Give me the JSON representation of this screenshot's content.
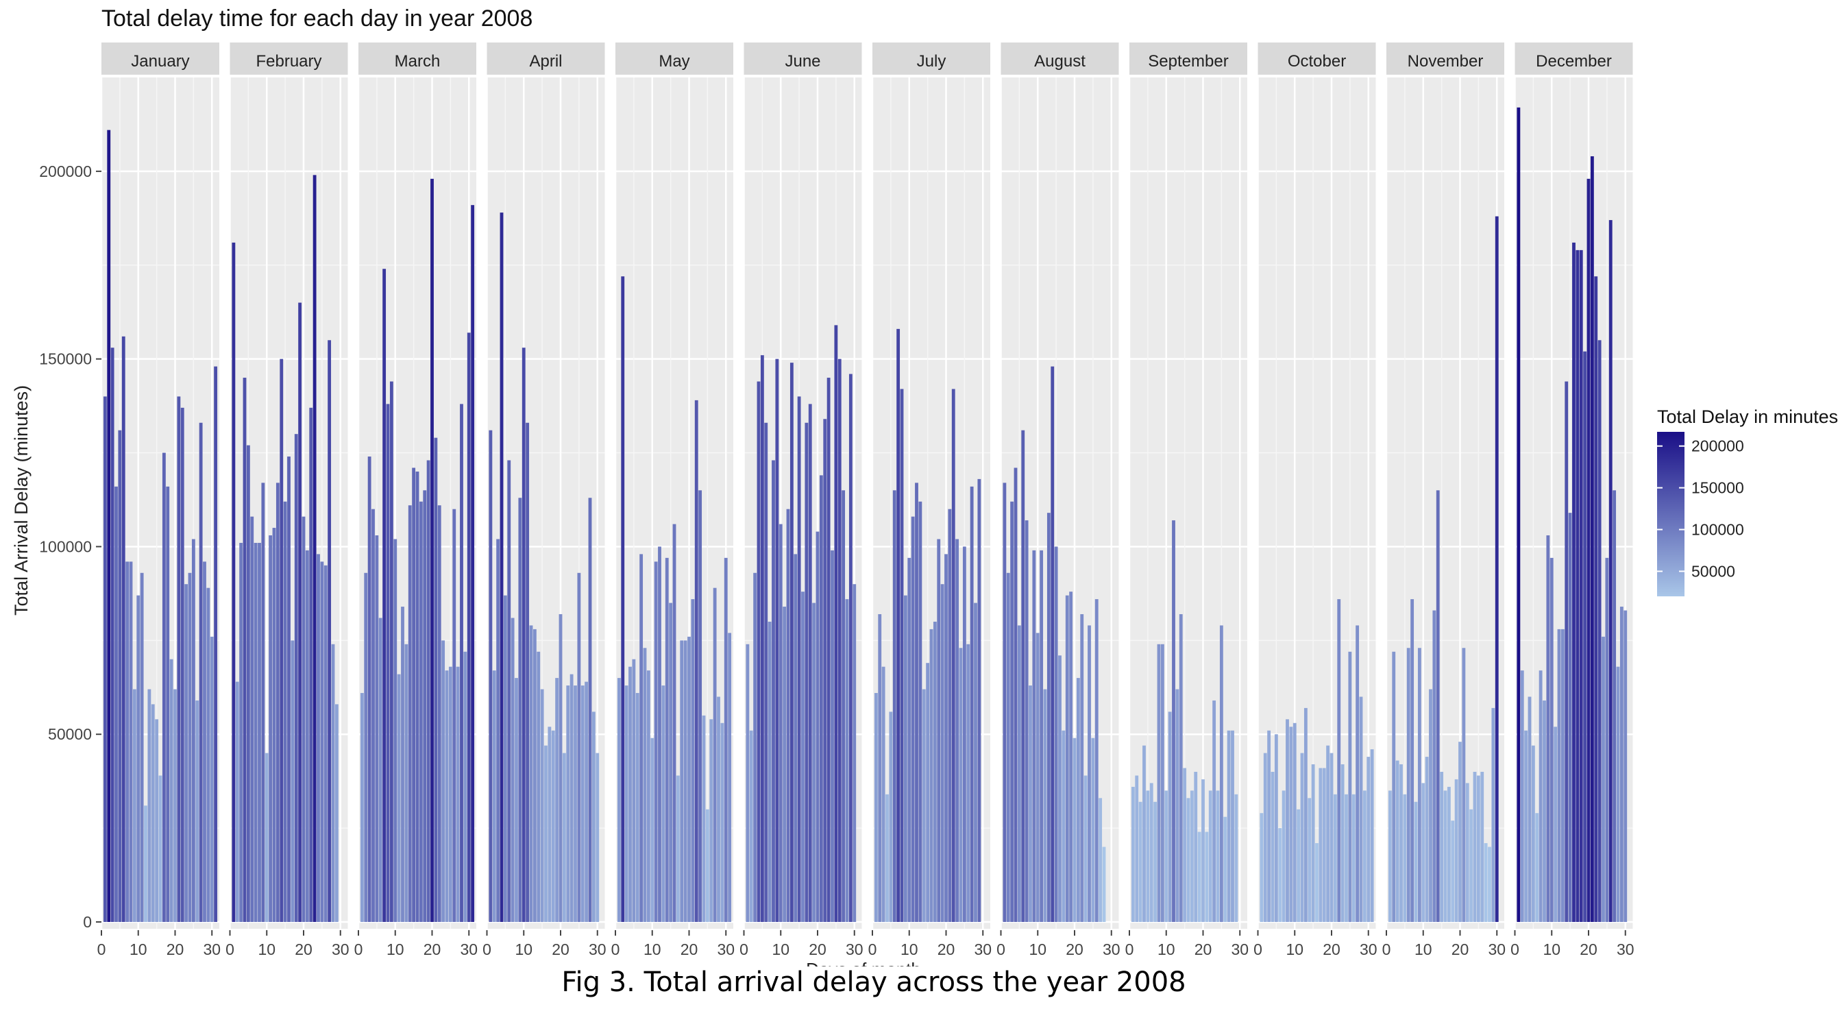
{
  "caption": "Fig 3. Total arrival delay across the year 2008",
  "chart_data": {
    "type": "bar",
    "title": "Total delay time for each day in year 2008",
    "xlabel": "Days of month",
    "ylabel": "Total Arrival Delay (minutes)",
    "ylim": [
      0,
      225000
    ],
    "yticks": [
      0,
      50000,
      100000,
      150000,
      200000
    ],
    "ytick_labels": [
      "0",
      "50000",
      "100000",
      "150000",
      "200000"
    ],
    "xlim": [
      0,
      32
    ],
    "xticks": [
      0,
      10,
      20,
      30
    ],
    "xtick_labels": [
      "0",
      "10",
      "20",
      "30"
    ],
    "grid": true,
    "legend": {
      "title": "Total Delay in minutes",
      "placement": "right",
      "breaks": [
        200000,
        150000,
        100000,
        50000
      ],
      "break_labels": [
        "200000",
        "150000",
        "100000",
        "50000"
      ],
      "range": [
        20000,
        217000
      ]
    },
    "colors": {
      "low": "#a9c6e8",
      "high": "#1a0f87",
      "panel_bg": "#ebebeb",
      "strip_bg": "#d9d9d9",
      "grid": "#ffffff"
    },
    "panels": [
      {
        "month": "January",
        "values": [
          140000,
          211000,
          153000,
          116000,
          131000,
          156000,
          96000,
          96000,
          62000,
          87000,
          93000,
          31000,
          62000,
          58000,
          54000,
          39000,
          125000,
          116000,
          70000,
          62000,
          140000,
          137000,
          90000,
          93000,
          102000,
          59000,
          133000,
          96000,
          89000,
          76000,
          148000
        ]
      },
      {
        "month": "February",
        "values": [
          181000,
          64000,
          101000,
          145000,
          127000,
          108000,
          101000,
          101000,
          117000,
          45000,
          103000,
          105000,
          117000,
          150000,
          112000,
          124000,
          75000,
          130000,
          165000,
          108000,
          99000,
          137000,
          199000,
          98000,
          96000,
          95000,
          155000,
          74000,
          58000
        ]
      },
      {
        "month": "March",
        "values": [
          61000,
          93000,
          124000,
          110000,
          103000,
          81000,
          174000,
          138000,
          144000,
          102000,
          66000,
          84000,
          74000,
          111000,
          121000,
          120000,
          112000,
          115000,
          123000,
          198000,
          129000,
          111000,
          75000,
          67000,
          68000,
          110000,
          68000,
          138000,
          72000,
          157000,
          191000
        ]
      },
      {
        "month": "April",
        "values": [
          131000,
          67000,
          102000,
          189000,
          87000,
          123000,
          81000,
          65000,
          113000,
          153000,
          133000,
          79000,
          78000,
          72000,
          62000,
          47000,
          52000,
          51000,
          65000,
          82000,
          45000,
          63000,
          66000,
          63000,
          93000,
          63000,
          64000,
          113000,
          56000,
          45000
        ]
      },
      {
        "month": "May",
        "values": [
          65000,
          172000,
          63000,
          68000,
          70000,
          61000,
          98000,
          73000,
          67000,
          49000,
          96000,
          100000,
          63000,
          97000,
          85000,
          106000,
          39000,
          75000,
          75000,
          76000,
          86000,
          139000,
          115000,
          55000,
          30000,
          54000,
          89000,
          60000,
          53000,
          97000,
          77000
        ]
      },
      {
        "month": "June",
        "values": [
          74000,
          51000,
          93000,
          144000,
          151000,
          133000,
          80000,
          123000,
          150000,
          106000,
          84000,
          110000,
          149000,
          98000,
          140000,
          88000,
          133000,
          138000,
          85000,
          104000,
          119000,
          134000,
          145000,
          99000,
          159000,
          150000,
          115000,
          86000,
          146000,
          90000
        ]
      },
      {
        "month": "July",
        "values": [
          61000,
          82000,
          68000,
          34000,
          56000,
          115000,
          158000,
          142000,
          87000,
          97000,
          108000,
          117000,
          112000,
          62000,
          69000,
          78000,
          80000,
          102000,
          90000,
          98000,
          110000,
          142000,
          102000,
          73000,
          100000,
          74000,
          116000,
          85000,
          118000
        ]
      },
      {
        "month": "August",
        "values": [
          117000,
          93000,
          112000,
          121000,
          79000,
          131000,
          107000,
          63000,
          99000,
          77000,
          99000,
          62000,
          109000,
          148000,
          100000,
          71000,
          51000,
          87000,
          88000,
          49000,
          65000,
          82000,
          39000,
          79000,
          49000,
          86000,
          33000,
          20000
        ]
      },
      {
        "month": "September",
        "values": [
          36000,
          39000,
          32000,
          47000,
          35000,
          37000,
          32000,
          74000,
          74000,
          35000,
          56000,
          107000,
          62000,
          82000,
          41000,
          33000,
          35000,
          40000,
          24000,
          38000,
          24000,
          35000,
          59000,
          35000,
          79000,
          28000,
          51000,
          51000,
          34000
        ]
      },
      {
        "month": "October",
        "values": [
          29000,
          45000,
          51000,
          40000,
          50000,
          25000,
          35000,
          54000,
          52000,
          53000,
          30000,
          45000,
          57000,
          33000,
          42000,
          21000,
          41000,
          41000,
          47000,
          45000,
          34000,
          86000,
          42000,
          34000,
          72000,
          34000,
          79000,
          60000,
          35000,
          44000,
          46000
        ]
      },
      {
        "month": "November",
        "values": [
          35000,
          72000,
          43000,
          42000,
          34000,
          73000,
          86000,
          32000,
          73000,
          37000,
          44000,
          62000,
          83000,
          115000,
          40000,
          35000,
          36000,
          27000,
          38000,
          48000,
          73000,
          37000,
          30000,
          40000,
          39000,
          40000,
          21000,
          20000,
          57000,
          188000
        ]
      },
      {
        "month": "December",
        "values": [
          217000,
          67000,
          51000,
          60000,
          47000,
          29000,
          67000,
          59000,
          103000,
          97000,
          52000,
          78000,
          78000,
          144000,
          109000,
          181000,
          179000,
          179000,
          152000,
          198000,
          204000,
          172000,
          155000,
          76000,
          97000,
          187000,
          115000,
          68000,
          84000,
          83000
        ]
      }
    ]
  }
}
